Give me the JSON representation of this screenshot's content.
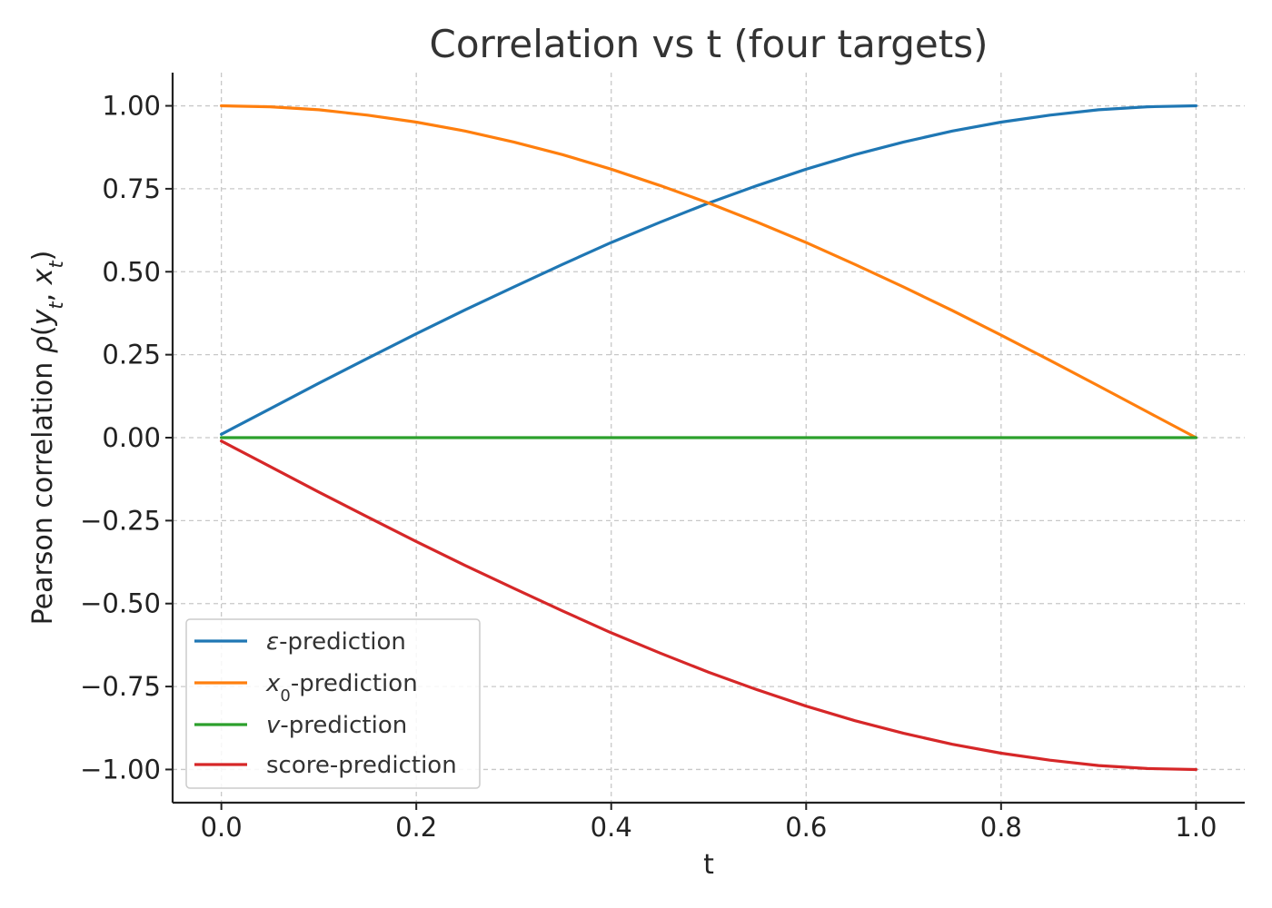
{
  "chart_data": {
    "type": "line",
    "title": "Correlation vs t (four targets)",
    "xlabel": "t",
    "ylabel": "Pearson correlation ρ(y_t, x_t)",
    "xlim": [
      -0.05,
      1.05
    ],
    "ylim": [
      -1.1,
      1.1
    ],
    "xticks": [
      0.0,
      0.2,
      0.4,
      0.6,
      0.8,
      1.0
    ],
    "xtick_labels": [
      "0.0",
      "0.2",
      "0.4",
      "0.6",
      "0.8",
      "1.0"
    ],
    "yticks": [
      1.0,
      0.75,
      0.5,
      0.25,
      0.0,
      -0.25,
      -0.5,
      -0.75,
      -1.0
    ],
    "ytick_labels": [
      "1.00",
      "0.75",
      "0.50",
      "0.25",
      "0.00",
      "−0.25",
      "−0.50",
      "−0.75",
      "−1.00"
    ],
    "grid": true,
    "legend_position": "lower-left",
    "x": [
      0.0,
      0.05,
      0.1,
      0.15,
      0.2,
      0.25,
      0.3,
      0.35,
      0.4,
      0.45,
      0.5,
      0.55,
      0.6,
      0.65,
      0.7,
      0.75,
      0.8,
      0.85,
      0.9,
      0.95,
      1.0
    ],
    "series": [
      {
        "name": "ε-prediction",
        "color": "#1f77b4",
        "values": [
          0.01,
          0.087,
          0.164,
          0.239,
          0.313,
          0.385,
          0.454,
          0.522,
          0.588,
          0.649,
          0.707,
          0.76,
          0.809,
          0.853,
          0.891,
          0.924,
          0.951,
          0.972,
          0.988,
          0.997,
          1.0
        ]
      },
      {
        "name": "x0-prediction",
        "color": "#ff7f0e",
        "values": [
          1.0,
          0.997,
          0.988,
          0.972,
          0.951,
          0.924,
          0.891,
          0.853,
          0.809,
          0.76,
          0.707,
          0.649,
          0.588,
          0.522,
          0.454,
          0.383,
          0.309,
          0.233,
          0.156,
          0.078,
          0.0
        ]
      },
      {
        "name": "v-prediction",
        "color": "#2ca02c",
        "values": [
          0.0,
          0.0,
          0.0,
          0.0,
          0.0,
          0.0,
          0.0,
          0.0,
          0.0,
          0.0,
          0.0,
          0.0,
          0.0,
          0.0,
          0.0,
          0.0,
          0.0,
          0.0,
          0.0,
          0.0,
          0.0
        ]
      },
      {
        "name": "score-prediction",
        "color": "#d62728",
        "values": [
          -0.01,
          -0.087,
          -0.164,
          -0.239,
          -0.313,
          -0.385,
          -0.454,
          -0.522,
          -0.588,
          -0.649,
          -0.707,
          -0.76,
          -0.809,
          -0.853,
          -0.891,
          -0.924,
          -0.951,
          -0.972,
          -0.988,
          -0.997,
          -1.0
        ]
      }
    ]
  }
}
